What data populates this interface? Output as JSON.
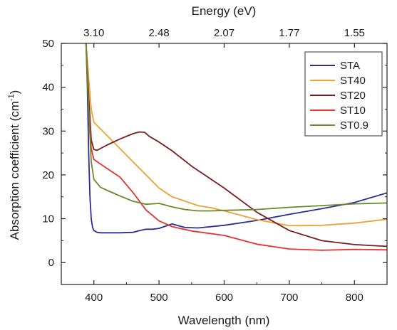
{
  "chart_data": {
    "type": "line",
    "xlabel": "Wavelength (nm)",
    "ylabel_main": "Absorption coefficient (cm",
    "ylabel_sup": "-1",
    "ylabel_close": ")",
    "top_axis_label": "Energy (eV)",
    "xlim": [
      350,
      850
    ],
    "ylim": [
      -5,
      50
    ],
    "x_ticks": [
      400,
      500,
      600,
      700,
      800
    ],
    "x_tick_labels": [
      "400",
      "500",
      "600",
      "700",
      "800"
    ],
    "y_ticks": [
      0,
      10,
      20,
      30,
      40,
      50
    ],
    "y_tick_labels": [
      "0",
      "10",
      "20",
      "30",
      "40",
      "50"
    ],
    "top_ticks": [
      {
        "label": "3.10",
        "at_wavelength": 400
      },
      {
        "label": "2.48",
        "at_wavelength": 500
      },
      {
        "label": "2.07",
        "at_wavelength": 600
      },
      {
        "label": "1.77",
        "at_wavelength": 700
      },
      {
        "label": "1.55",
        "at_wavelength": 800
      }
    ],
    "legend_position": "top-right",
    "series": [
      {
        "name": "STA",
        "color": "#2b2f8f",
        "x": [
          388,
          390,
          392,
          394,
          396,
          398,
          400,
          405,
          410,
          420,
          440,
          460,
          470,
          480,
          490,
          500,
          510,
          520,
          530,
          540,
          560,
          600,
          650,
          700,
          750,
          800,
          850
        ],
        "y": [
          50,
          40,
          25,
          15,
          10,
          8,
          7.3,
          6.9,
          6.8,
          6.8,
          6.8,
          6.9,
          7.3,
          7.6,
          7.6,
          7.8,
          8.3,
          8.8,
          8.4,
          8.0,
          7.9,
          8.5,
          9.6,
          11.0,
          12.3,
          13.7,
          15.9
        ]
      },
      {
        "name": "ST40",
        "color": "#f0a030",
        "x": [
          388,
          392,
          396,
          400,
          410,
          420,
          440,
          460,
          480,
          500,
          520,
          540,
          560,
          580,
          600,
          650,
          700,
          750,
          800,
          850
        ],
        "y": [
          50,
          42,
          35,
          32,
          30.5,
          29,
          26,
          23,
          20,
          17,
          15,
          14,
          13,
          12.5,
          11.8,
          9.8,
          8.4,
          8.5,
          9.0,
          9.9
        ]
      },
      {
        "name": "ST20",
        "color": "#7a1c1c",
        "x": [
          388,
          392,
          396,
          400,
          405,
          410,
          420,
          440,
          460,
          470,
          478,
          485,
          500,
          520,
          550,
          600,
          650,
          700,
          750,
          800,
          850
        ],
        "y": [
          50,
          38,
          28,
          25.8,
          25.6,
          26.0,
          26.8,
          28.2,
          29.4,
          29.8,
          29.7,
          28.8,
          27.5,
          25.5,
          22,
          17,
          11.5,
          7.3,
          5.0,
          4.1,
          3.7
        ]
      },
      {
        "name": "ST10",
        "color": "#e83030",
        "x": [
          388,
          392,
          396,
          400,
          410,
          420,
          440,
          460,
          480,
          500,
          520,
          550,
          600,
          650,
          700,
          750,
          800,
          850
        ],
        "y": [
          50,
          35,
          26,
          23.5,
          22.5,
          21.5,
          19.5,
          16,
          12,
          9.5,
          8.2,
          7.2,
          6.2,
          4.2,
          3.1,
          2.8,
          3.0,
          2.9
        ]
      },
      {
        "name": "ST0.9",
        "color": "#6a8a2a",
        "x": [
          388,
          392,
          396,
          400,
          410,
          420,
          440,
          460,
          480,
          490,
          500,
          510,
          520,
          540,
          560,
          580,
          600,
          650,
          700,
          750,
          800,
          850
        ],
        "y": [
          50,
          35,
          23,
          19,
          17.2,
          16.5,
          15.2,
          14.0,
          13.3,
          13.4,
          13.5,
          13.1,
          12.7,
          12.1,
          11.8,
          11.8,
          11.9,
          12.1,
          12.6,
          13.0,
          13.4,
          13.6
        ]
      }
    ]
  }
}
